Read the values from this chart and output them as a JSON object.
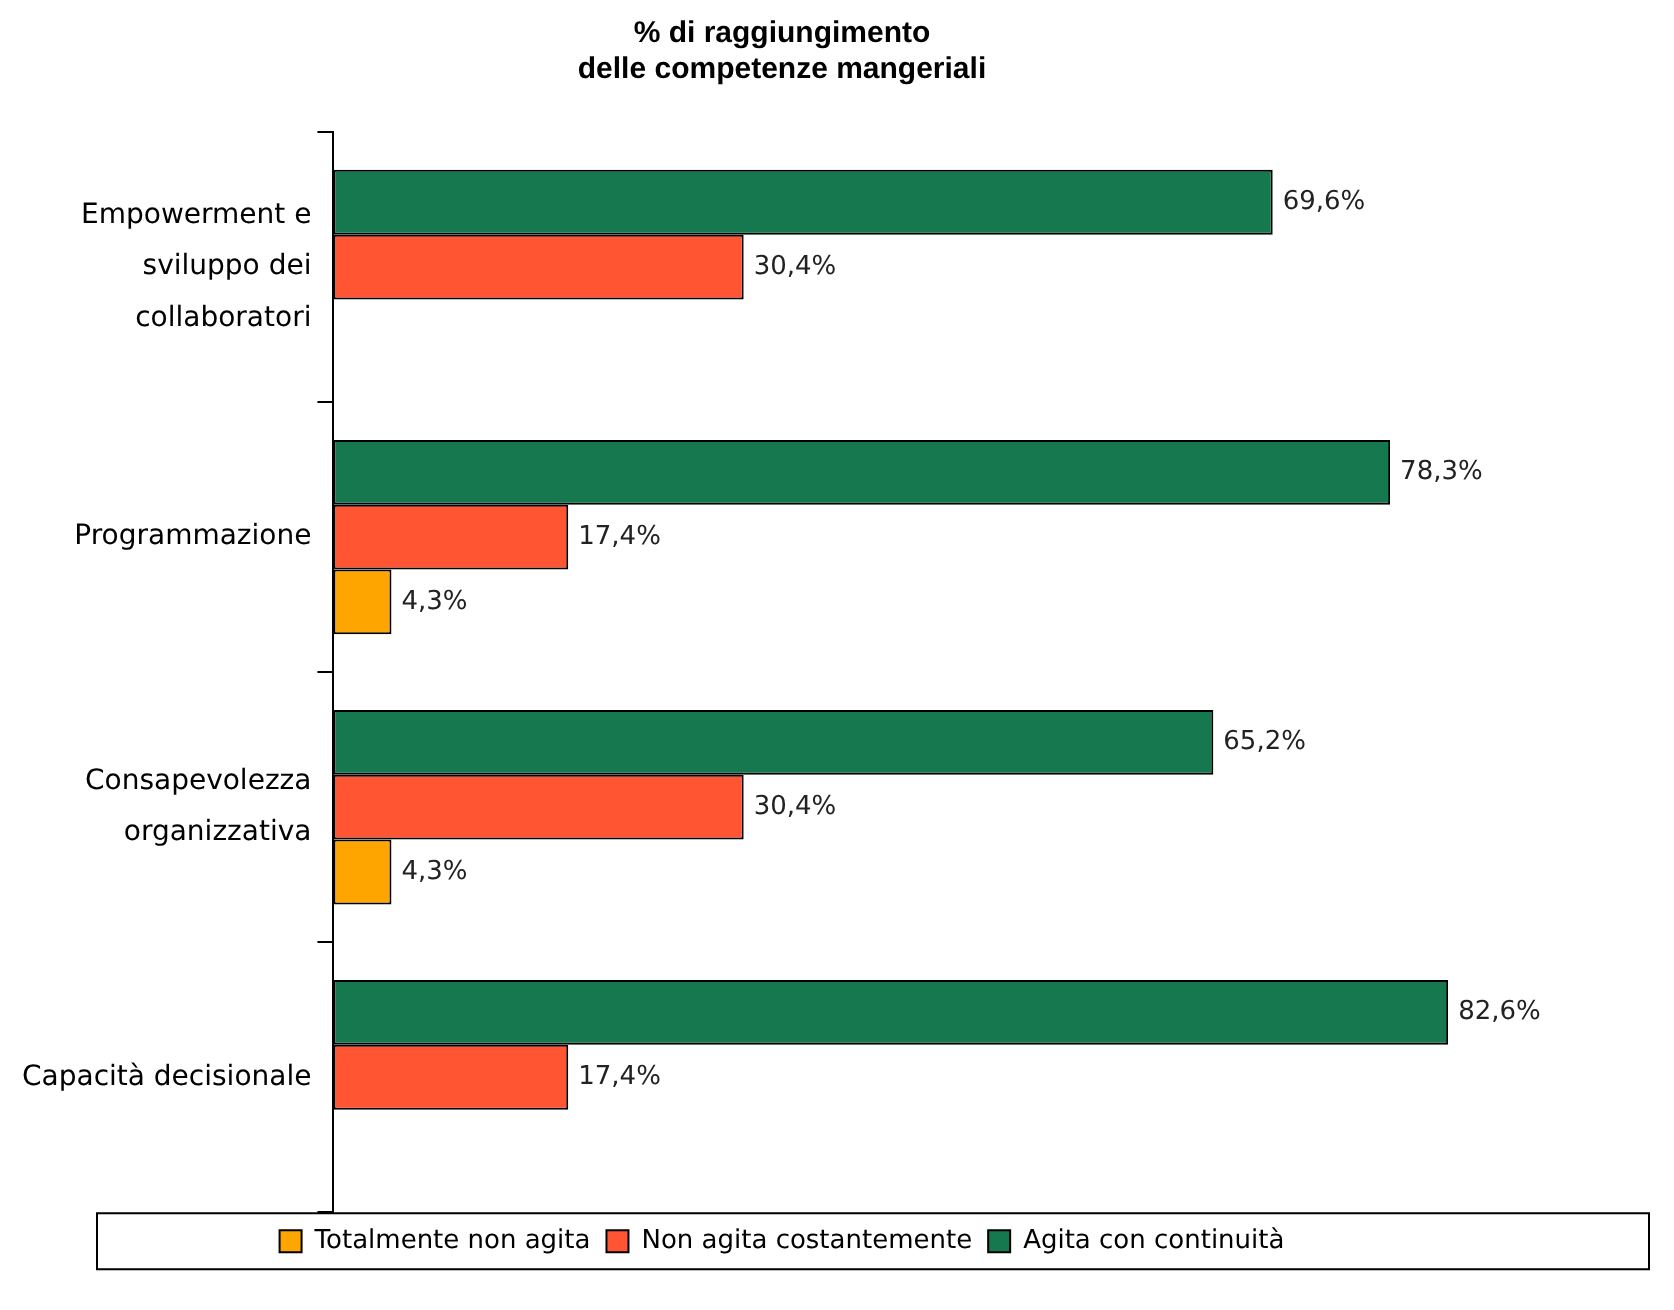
{
  "chart_data": {
    "type": "bar",
    "orientation": "horizontal",
    "title": "% di raggiungimento\ndelle competenze mangeriali",
    "categories": [
      "Empowerment e\nsviluppo dei\ncollaboratori",
      "Programmazione",
      "Consapevolezza\norganizzativa",
      "Capacità decisionale"
    ],
    "series": [
      {
        "name": "Agita con continuità",
        "color": "#16784e",
        "values": [
          69.6,
          78.3,
          65.2,
          82.6
        ],
        "value_labels": [
          "69,6%",
          "78,3%",
          "65,2%",
          "82,6%"
        ]
      },
      {
        "name": "Non agita costantemente",
        "color": "#ff5533",
        "values": [
          30.4,
          17.4,
          30.4,
          17.4
        ],
        "value_labels": [
          "30,4%",
          "17,4%",
          "30,4%",
          "17,4%"
        ]
      },
      {
        "name": "Totalmente non agita",
        "color": "#ffa500",
        "values": [
          null,
          4.3,
          4.3,
          null
        ],
        "value_labels": [
          null,
          "4,3%",
          "4,3%",
          null
        ]
      }
    ],
    "legend": "bottom",
    "grid": false
  }
}
